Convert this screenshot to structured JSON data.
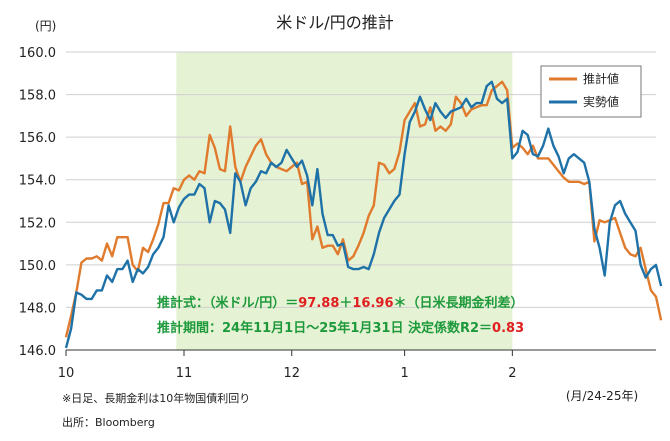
{
  "chart_data": {
    "type": "line",
    "title": "米ドル/円の推計",
    "y_unit": "(円)",
    "x_unit": "(月/24-25年)",
    "ylim": [
      146.0,
      160.0
    ],
    "yticks": [
      "146.0",
      "148.0",
      "150.0",
      "152.0",
      "154.0",
      "156.0",
      "158.0",
      "160.0"
    ],
    "xlim": [
      0,
      115
    ],
    "xticks": [
      {
        "label": "10",
        "x": 0
      },
      {
        "label": "11",
        "x": 23
      },
      {
        "label": "12",
        "x": 44
      },
      {
        "label": "1",
        "x": 66
      },
      {
        "label": "2",
        "x": 87
      }
    ],
    "shaded_range": [
      21.5,
      87
    ],
    "grid": true,
    "legend_position": "top-right",
    "series": [
      {
        "name": "推計値",
        "color": "#e07b2e",
        "values": [
          146.6,
          147.6,
          148.7,
          150.1,
          150.3,
          150.3,
          150.4,
          150.2,
          151.0,
          150.4,
          151.3,
          151.3,
          151.3,
          150.0,
          149.7,
          150.8,
          150.6,
          151.2,
          151.9,
          152.9,
          152.9,
          153.6,
          153.5,
          154.0,
          154.2,
          154.0,
          154.4,
          154.3,
          156.1,
          155.5,
          154.5,
          154.4,
          156.5,
          154.6,
          153.9,
          154.6,
          155.1,
          155.6,
          155.9,
          155.2,
          154.8,
          154.6,
          154.5,
          154.4,
          154.6,
          154.8,
          153.8,
          153.9,
          151.2,
          151.8,
          150.8,
          150.9,
          150.9,
          150.5,
          151.2,
          150.2,
          150.4,
          150.9,
          151.5,
          152.3,
          152.8,
          154.8,
          154.7,
          154.3,
          154.5,
          155.3,
          156.8,
          157.2,
          157.6,
          156.5,
          156.6,
          157.4,
          156.3,
          156.5,
          156.3,
          156.6,
          157.9,
          157.6,
          157.0,
          157.3,
          157.4,
          157.5,
          157.5,
          158.2,
          158.4,
          158.6,
          158.2,
          155.5,
          155.7,
          155.5,
          155.2,
          155.6,
          155.0,
          155.0,
          155.0,
          154.7,
          154.4,
          154.1,
          153.9,
          153.9,
          153.9,
          153.8,
          153.9,
          151.1,
          152.1,
          152.0,
          152.1,
          152.2,
          151.5,
          150.8,
          150.5,
          150.4,
          150.8,
          149.8,
          148.8,
          148.5,
          147.4
        ]
      },
      {
        "name": "実勢値",
        "color": "#1f72a8",
        "values": [
          146.1,
          147.0,
          148.7,
          148.6,
          148.4,
          148.4,
          148.8,
          148.8,
          149.5,
          149.2,
          149.8,
          149.8,
          150.2,
          149.2,
          149.8,
          149.6,
          149.9,
          150.5,
          150.8,
          151.3,
          152.8,
          152.0,
          152.7,
          153.1,
          153.3,
          153.3,
          153.8,
          153.6,
          152.0,
          153.0,
          152.9,
          152.6,
          151.5,
          154.3,
          153.9,
          152.8,
          153.6,
          153.9,
          154.4,
          154.3,
          154.8,
          154.6,
          154.8,
          155.4,
          155.0,
          154.6,
          154.9,
          154.2,
          152.8,
          154.5,
          152.4,
          151.4,
          151.4,
          150.9,
          151.0,
          149.9,
          149.8,
          149.8,
          149.9,
          149.8,
          150.5,
          151.5,
          152.2,
          152.6,
          153.0,
          153.3,
          155.2,
          156.7,
          157.2,
          157.9,
          157.3,
          156.8,
          157.6,
          157.2,
          156.9,
          157.2,
          157.3,
          157.4,
          157.8,
          157.4,
          157.6,
          157.6,
          158.4,
          158.6,
          157.8,
          157.6,
          157.8,
          155.0,
          155.3,
          156.3,
          156.1,
          155.2,
          155.1,
          155.6,
          156.4,
          155.6,
          155.1,
          154.3,
          155.0,
          155.2,
          155.0,
          154.8,
          153.9,
          151.7,
          150.8,
          149.5,
          152.0,
          152.8,
          153.0,
          152.4,
          152.0,
          151.6,
          150.0,
          149.4,
          149.8,
          150.0,
          149.0
        ]
      }
    ],
    "annotations": {
      "formula_prefix": "推計式：（米ドル/円）＝",
      "formula_intercept": "97.88",
      "formula_plus": "＋",
      "formula_slope": "16.96",
      "formula_suffix": "＊（日米長期金利差）",
      "period_text": "推計期間：24年11月1日～25年1月31日 決定係数R2＝",
      "r2": "0.83"
    },
    "notes": [
      "※日足、長期金利は10年物国債利回り",
      "出所：Bloomberg"
    ]
  },
  "colors": {
    "shade": "#e6f2d4",
    "grid": "#cfcfcf",
    "formula_green": "#1e9a3c",
    "formula_red": "#e02020"
  }
}
